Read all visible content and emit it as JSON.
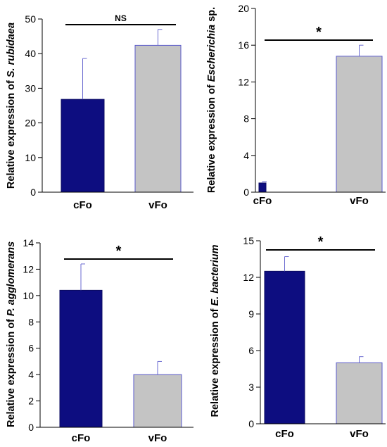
{
  "chart_data": [
    {
      "type": "bar",
      "ylabel": "Relative expression of S. rubidaea",
      "ylabel_parts": [
        {
          "text": "Relative expression of ",
          "italic": false
        },
        {
          "text": "S. rubidaea",
          "italic": true
        }
      ],
      "categories": [
        "cFo",
        "vFo"
      ],
      "values": [
        26.8,
        42.4
      ],
      "errors": [
        11.8,
        4.6
      ],
      "ylim": [
        0,
        50
      ],
      "yticks": [
        0,
        10,
        20,
        30,
        40,
        50
      ],
      "significance": "NS",
      "grid": false,
      "colors": [
        "#0d0d80",
        "#c4c4c4"
      ]
    },
    {
      "type": "bar",
      "ylabel": "Relative expression of Escherichia sp.",
      "ylabel_parts": [
        {
          "text": "Relative expression of ",
          "italic": false
        },
        {
          "text": "Escherichia",
          "italic": true
        },
        {
          "text": " sp.",
          "italic": false
        }
      ],
      "categories": [
        "cFo",
        "vFo"
      ],
      "values": [
        1.0,
        14.8
      ],
      "errors": [
        0.15,
        1.2
      ],
      "ylim": [
        0,
        20
      ],
      "yticks": [
        0,
        4,
        8,
        12,
        16,
        20
      ],
      "significance": "*",
      "grid": false,
      "colors": [
        "#0d0d80",
        "#c4c4c4"
      ]
    },
    {
      "type": "bar",
      "ylabel": "Relative expression of P. agglomerans",
      "ylabel_parts": [
        {
          "text": "Relative expression of ",
          "italic": false
        },
        {
          "text": "P. agglomerans",
          "italic": true
        }
      ],
      "categories": [
        "cFo",
        "vFo"
      ],
      "values": [
        10.4,
        4.0
      ],
      "errors": [
        2.0,
        1.0
      ],
      "ylim": [
        0,
        14
      ],
      "yticks": [
        0,
        2,
        4,
        6,
        8,
        10,
        12,
        14
      ],
      "significance": "*",
      "grid": false,
      "colors": [
        "#0d0d80",
        "#c4c4c4"
      ]
    },
    {
      "type": "bar",
      "ylabel": "Relative expression of E. bacterium",
      "ylabel_parts": [
        {
          "text": "Relative expression of ",
          "italic": false
        },
        {
          "text": "E. bacterium",
          "italic": true
        }
      ],
      "categories": [
        "cFo",
        "vFo"
      ],
      "values": [
        12.5,
        5.0
      ],
      "errors": [
        1.2,
        0.5
      ],
      "ylim": [
        0,
        15
      ],
      "yticks": [
        0,
        3,
        6,
        9,
        12,
        15
      ],
      "significance": "*",
      "grid": false,
      "colors": [
        "#0d0d80",
        "#c4c4c4"
      ]
    }
  ]
}
